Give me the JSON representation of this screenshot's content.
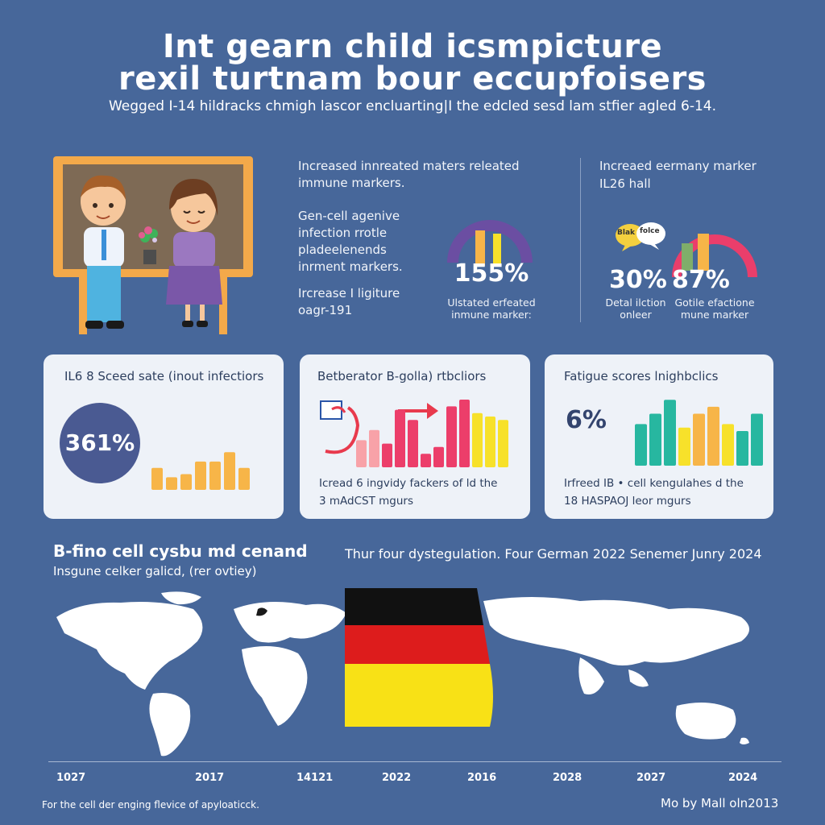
{
  "header": {
    "title_line1": "Int gearn child icsmpicture",
    "title_line2": "rexil turtnam bour eccupfoisers",
    "subtitle": "Wegged I-14 hildracks chmigh lascor encluarting|I the edcled sesd lam stfier agled 6-14."
  },
  "top_middle": {
    "para1": "Increased innreated maters releated immune markers.",
    "para2": "Gen-cell agenive infection rrotle pladeelenends inrment markers.",
    "para3": "Ircrease I ligiture oagr-191",
    "gauge_value": "155%",
    "gauge_caption": "Ulstated erfeated inmune marker:"
  },
  "top_right": {
    "title": "Increaed eermany marker",
    "subtitle": "IL26 hall",
    "bubble1": "Blak",
    "bubble2": "folce",
    "value1": "30%",
    "value2": "87%",
    "caption1": "Detal ilction onleer",
    "caption2": "Gotile efactione mune marker",
    "colors": {
      "bubble1": "#f4d03f",
      "bubble2": "#ffffff",
      "gauge": "#ea3e6b"
    }
  },
  "cards": [
    {
      "title": "IL6 8 Sceed sate (inout infectiors",
      "circle_value": "361%",
      "bar_levels": [
        0.35,
        0.2,
        0.25,
        0.45,
        0.45,
        0.6,
        0.35
      ],
      "colors": {
        "circle": "#4a5a92",
        "bars": "#f7b548"
      }
    },
    {
      "title": "Betberator B-golla) rtbcliors",
      "footer1": "Icread 6 ingvidy fackers of ld the",
      "footer2": "3 mAdCST mgurs",
      "bar_levels": [
        0.4,
        0.55,
        0.35,
        0.85,
        0.7,
        0.2,
        0.3,
        0.9,
        1.0,
        0.8,
        0.75,
        0.7
      ],
      "colors": {
        "arrow": "#e83a4d",
        "bars": [
          "#f8a2a8",
          "#f8a2a8",
          "#ec3e6a",
          "#ec3e6a",
          "#ec3e6a",
          "#ec3e6a",
          "#ec3e6a",
          "#ec3e6a",
          "#ec3e6a",
          "#f7e12a",
          "#f7e12a",
          "#f7e12a"
        ]
      }
    },
    {
      "title": "Fatigue scores lnighbclics",
      "pct": "6%",
      "footer1": "Irfreed IB • cell kengulahes d the",
      "footer2": "18 HASPAOJ leor mgurs",
      "bar_levels": [
        0.6,
        0.75,
        0.95,
        0.55,
        0.75,
        0.85,
        0.6,
        0.5,
        0.75
      ],
      "colors": {
        "bars": [
          "#27b7a0",
          "#27b7a0",
          "#27b7a0",
          "#f7e12a",
          "#f7b548",
          "#f7b548",
          "#f7e12a",
          "#27b7a0",
          "#27b7a0"
        ]
      }
    }
  ],
  "map_section": {
    "title": "B-fino cell cysbu md cenand",
    "subtitle": "Insgune celker galicd, (rer ovtiey)",
    "headline": "Thur four dystegulation. Four German 2022 Senemer Junry 2024",
    "axis_labels": [
      "1027",
      "2017",
      "14121",
      "2022",
      "2016",
      "2028",
      "2027",
      "2024"
    ],
    "flag_colors": [
      "#111111",
      "#dd1c1c",
      "#f8e116"
    ]
  },
  "footer": {
    "left": "For the cell der enging flevice of apyloaticck.",
    "right": "Mo by Mall oln2013"
  }
}
